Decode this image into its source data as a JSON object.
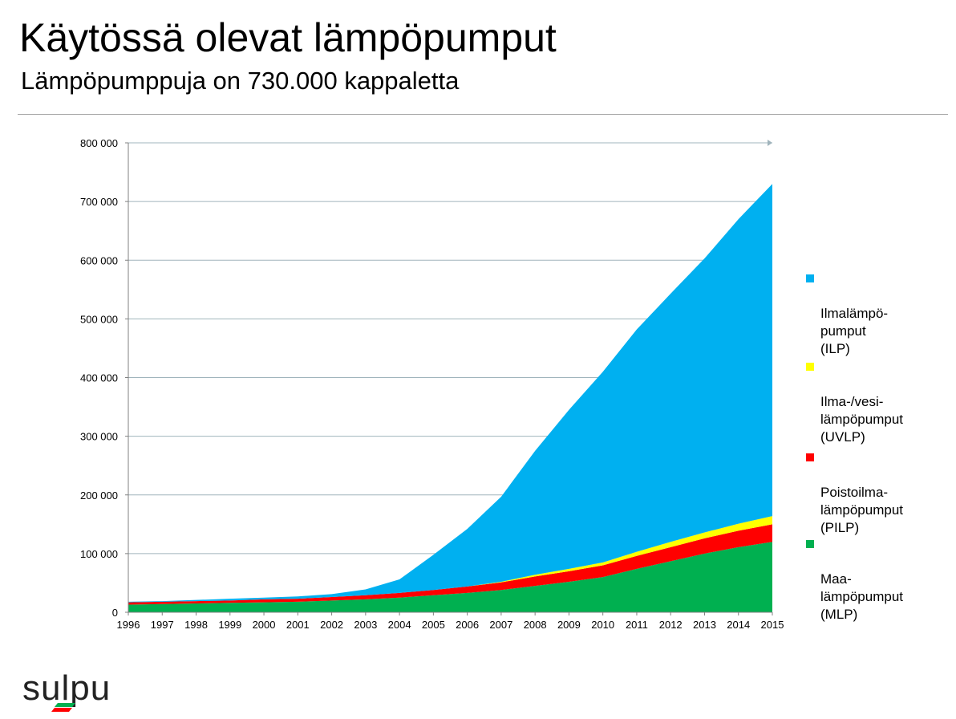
{
  "header": {
    "title": "Käytössä olevat lämpöpumput",
    "subtitle": "Lämpöpumppuja on 730.000 kappaletta"
  },
  "logo": {
    "text": "sulpu"
  },
  "chart_data": {
    "type": "area",
    "stacked": true,
    "grid": true,
    "legend_position": "right",
    "x": [
      "1996",
      "1997",
      "1998",
      "1999",
      "2000",
      "2001",
      "2002",
      "2003",
      "2004",
      "2005",
      "2006",
      "2007",
      "2008",
      "2009",
      "2010",
      "2011",
      "2012",
      "2013",
      "2014",
      "2015"
    ],
    "ylim": [
      0,
      800000
    ],
    "yticks": [
      0,
      100000,
      200000,
      300000,
      400000,
      500000,
      600000,
      700000,
      800000
    ],
    "ytick_labels": [
      "0",
      "100 000",
      "200 000",
      "300 000",
      "400 000",
      "500 000",
      "600 000",
      "700 000",
      "800 000"
    ],
    "series": [
      {
        "name": "Maa-\nlämpöpumput\n(MLP)",
        "color": "#00b050",
        "values": [
          13000,
          14000,
          15000,
          16000,
          17000,
          18000,
          20000,
          22000,
          25000,
          29000,
          33000,
          38000,
          45000,
          52000,
          60000,
          74000,
          87000,
          100000,
          111000,
          120000
        ]
      },
      {
        "name": "Poistoilma-\nlämpöpumput\n(PILP)",
        "color": "#ff0000",
        "values": [
          4000,
          4000,
          4000,
          4000,
          5000,
          5000,
          6000,
          7000,
          8000,
          9000,
          11000,
          13000,
          16000,
          18000,
          20000,
          22000,
          24000,
          26000,
          28000,
          30000
        ]
      },
      {
        "name": "Ilma-/vesi-\nlämpöpumput\n(UVLP)",
        "color": "#ffff00",
        "values": [
          0,
          0,
          0,
          0,
          0,
          0,
          0,
          0,
          0,
          0,
          0,
          1000,
          3000,
          4000,
          5000,
          7000,
          9000,
          10000,
          12000,
          14000
        ]
      },
      {
        "name": "Ilmalämpö-\npumput\n(ILP)",
        "color": "#00b0f0",
        "values": [
          1000,
          1000,
          2000,
          3000,
          3000,
          4000,
          5000,
          10000,
          23000,
          60000,
          98000,
          145000,
          211000,
          271000,
          325000,
          379000,
          423000,
          467000,
          519000,
          566000
        ]
      }
    ]
  }
}
